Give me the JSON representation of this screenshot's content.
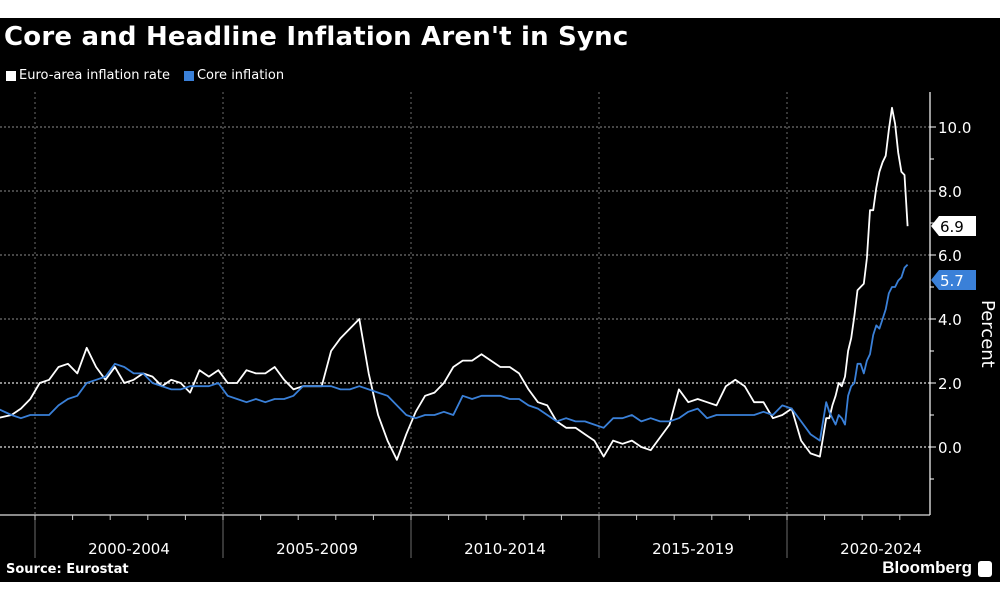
{
  "chart_data": {
    "type": "line",
    "title": "Core and Headline Inflation Aren't in Sync",
    "ylabel": "Percent",
    "xlabel": "",
    "ylim": [
      -2,
      11
    ],
    "xlim": [
      1999.0,
      2023.25
    ],
    "y_ticks": [
      "0.0",
      "2.0",
      "4.0",
      "6.0",
      "8.0",
      "10.0"
    ],
    "y_tick_values": [
      0,
      2,
      4,
      6,
      8,
      10
    ],
    "x_tick_labels": [
      "2000-2004",
      "2005-2009",
      "2010-2014",
      "2015-2019",
      "2020-2024"
    ],
    "x_tick_starts": [
      2000,
      2005,
      2010,
      2015,
      2020
    ],
    "grid": true,
    "legend_placement": "top-left",
    "source": "Source: Eurostat",
    "brand": "Bloomberg",
    "series": [
      {
        "name": "Euro-area inflation rate",
        "color": "#ffffff",
        "last_label": "6.9",
        "quarterly_start": 1999,
        "quarterly": [
          0.9,
          1.0,
          1.2,
          1.5,
          2.0,
          2.1,
          2.5,
          2.6,
          2.3,
          3.1,
          2.5,
          2.1,
          2.5,
          2.0,
          2.1,
          2.3,
          2.2,
          1.9,
          2.1,
          2.0,
          1.7,
          2.4,
          2.2,
          2.4,
          2.0,
          2.0,
          2.4,
          2.3,
          2.3,
          2.5,
          2.1,
          1.8,
          1.9,
          1.9,
          1.9,
          3.0,
          3.4,
          3.7,
          4.0,
          2.3,
          1.0,
          0.2,
          -0.4,
          0.4,
          1.1,
          1.6,
          1.7,
          2.0,
          2.5,
          2.7,
          2.7,
          2.9,
          2.7,
          2.5,
          2.5,
          2.3,
          1.8,
          1.4,
          1.3,
          0.8,
          0.6,
          0.6,
          0.4,
          0.2,
          -0.3,
          0.2,
          0.1,
          0.2,
          0.0,
          -0.1,
          0.3,
          0.7,
          1.8,
          1.4,
          1.5,
          1.4,
          1.3,
          1.9,
          2.1,
          1.9,
          1.4,
          1.4,
          0.9,
          1.0,
          1.2,
          0.2,
          -0.2,
          -0.3
        ],
        "monthly_start": 2021,
        "monthly": [
          0.9,
          0.9,
          1.3,
          1.6,
          2.0,
          1.9,
          2.2,
          3.0,
          3.4,
          4.1,
          4.9,
          5.0,
          5.1,
          5.9,
          7.4,
          7.4,
          8.1,
          8.6,
          8.9,
          9.1,
          9.9,
          10.6,
          10.1,
          9.2,
          8.6,
          8.5,
          6.9
        ]
      },
      {
        "name": "Core inflation",
        "color": "#3a80d8",
        "last_label": "5.7",
        "quarterly_start": 1999,
        "quarterly": [
          1.2,
          1.0,
          0.9,
          1.0,
          1.0,
          1.0,
          1.3,
          1.5,
          1.6,
          2.0,
          2.1,
          2.2,
          2.6,
          2.5,
          2.3,
          2.3,
          2.0,
          1.9,
          1.8,
          1.8,
          1.9,
          1.9,
          1.9,
          2.0,
          1.6,
          1.5,
          1.4,
          1.5,
          1.4,
          1.5,
          1.5,
          1.6,
          1.9,
          1.9,
          1.9,
          1.9,
          1.8,
          1.8,
          1.9,
          1.8,
          1.7,
          1.6,
          1.3,
          1.0,
          0.9,
          1.0,
          1.0,
          1.1,
          1.0,
          1.6,
          1.5,
          1.6,
          1.6,
          1.6,
          1.5,
          1.5,
          1.3,
          1.2,
          1.0,
          0.8,
          0.9,
          0.8,
          0.8,
          0.7,
          0.6,
          0.9,
          0.9,
          1.0,
          0.8,
          0.9,
          0.8,
          0.8,
          0.9,
          1.1,
          1.2,
          0.9,
          1.0,
          1.0,
          1.0,
          1.0,
          1.0,
          1.1,
          1.0,
          1.3,
          1.2,
          0.8,
          0.4,
          0.2
        ],
        "monthly_start": 2021,
        "monthly": [
          1.4,
          1.1,
          0.9,
          0.7,
          1.0,
          0.9,
          0.7,
          1.6,
          1.9,
          2.0,
          2.6,
          2.6,
          2.3,
          2.7,
          2.9,
          3.5,
          3.8,
          3.7,
          4.0,
          4.3,
          4.8,
          5.0,
          5.0,
          5.2,
          5.3,
          5.6,
          5.7
        ]
      }
    ]
  }
}
